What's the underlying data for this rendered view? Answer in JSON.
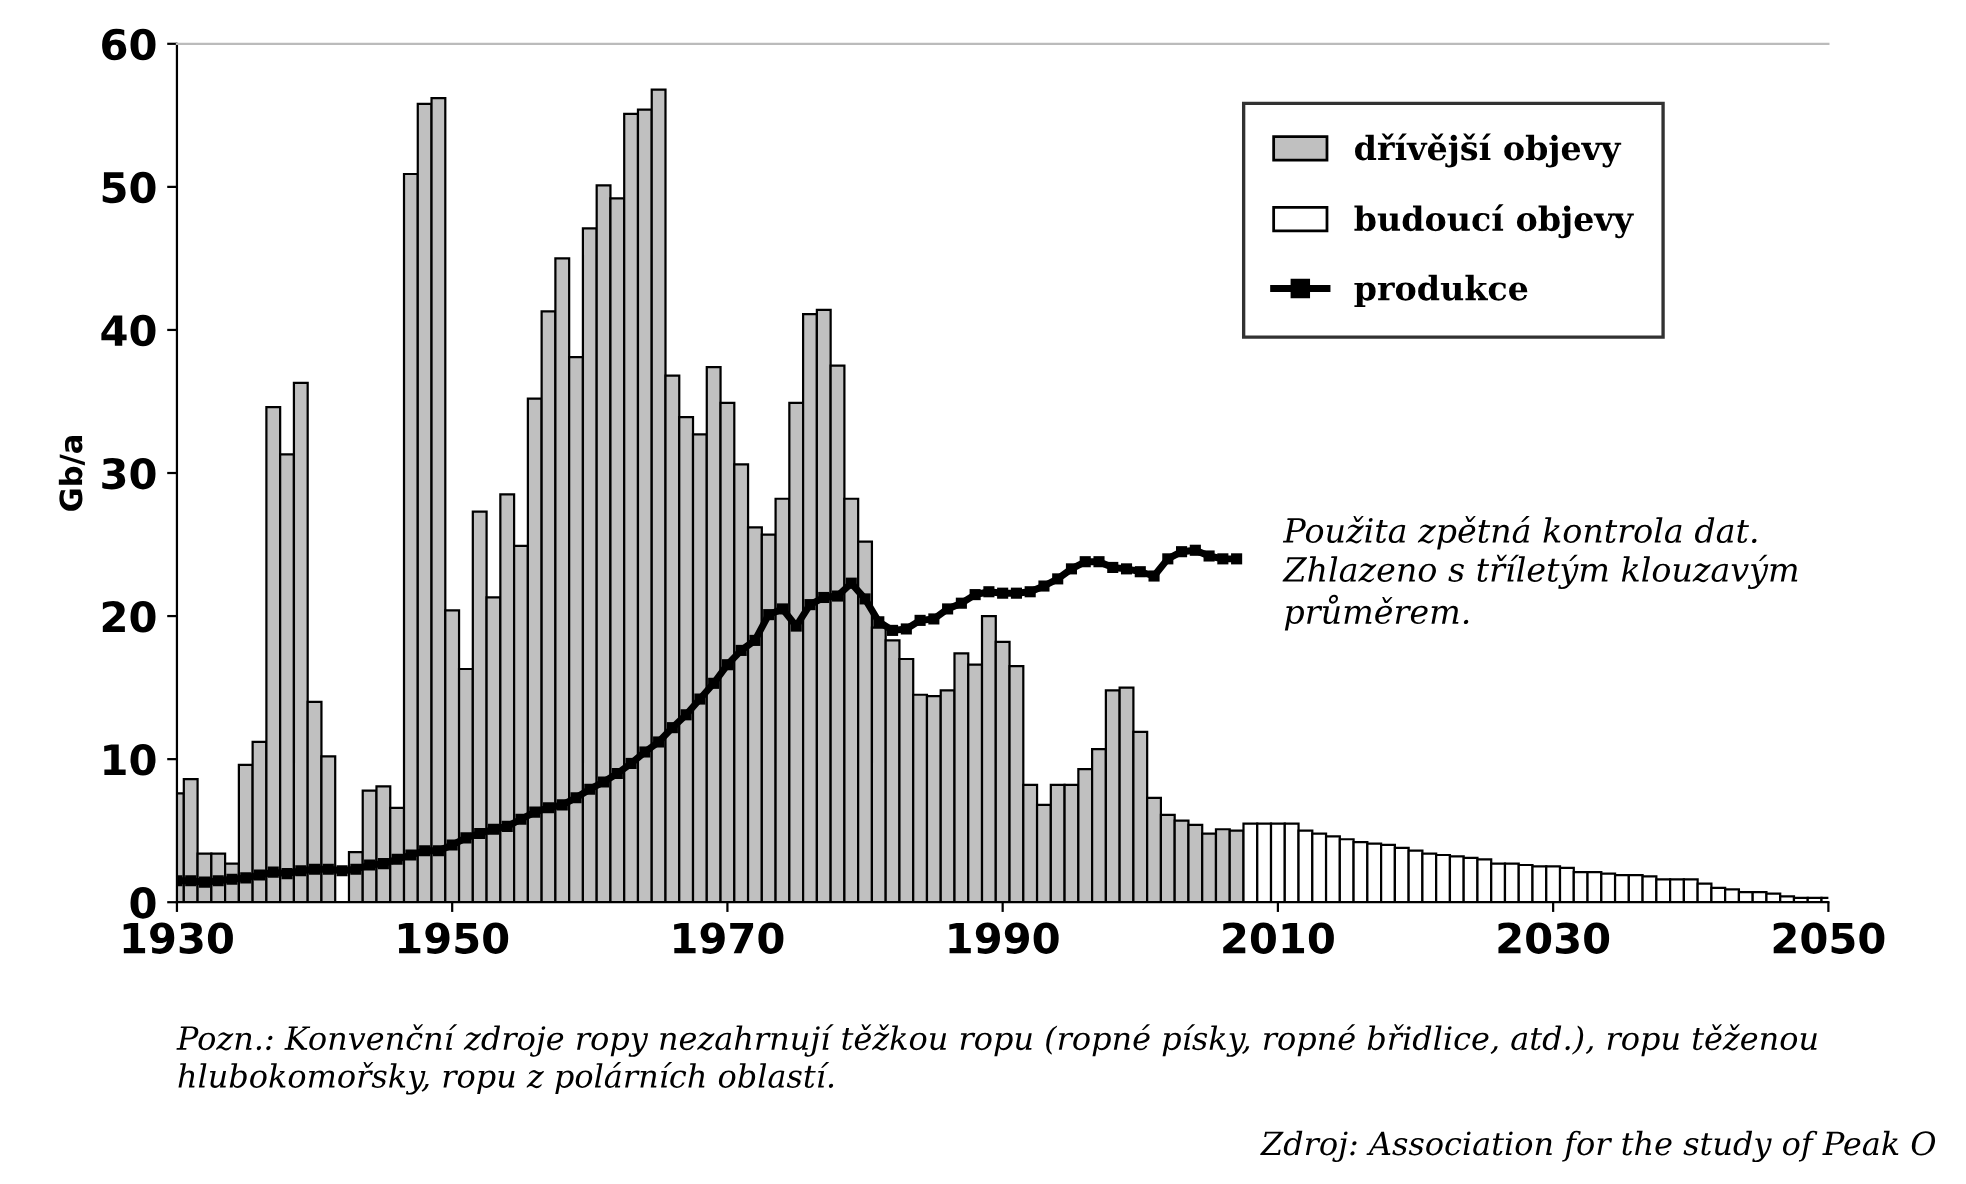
{
  "chart_data": {
    "type": "bar",
    "ylabel": "Gb/a",
    "xlim": [
      1930,
      2050
    ],
    "xticks": [
      1930,
      1950,
      1970,
      1990,
      2010,
      2030,
      2050
    ],
    "ylim": [
      0,
      60
    ],
    "yticks": [
      0,
      10,
      20,
      30,
      40,
      50,
      60
    ],
    "grid": false,
    "legend": "top right",
    "marker": "square",
    "line_style": "solid",
    "series": [
      {
        "name": "dřívější objevy",
        "color": "#c0c0c0",
        "x": [
          1930,
          1931,
          1932,
          1933,
          1934,
          1935,
          1936,
          1937,
          1938,
          1939,
          1940,
          1941,
          1942,
          1943,
          1944,
          1945,
          1946,
          1947,
          1948,
          1949,
          1950,
          1951,
          1952,
          1953,
          1954,
          1955,
          1956,
          1957,
          1958,
          1959,
          1960,
          1961,
          1962,
          1963,
          1964,
          1965,
          1966,
          1967,
          1968,
          1969,
          1970,
          1971,
          1972,
          1973,
          1974,
          1975,
          1976,
          1977,
          1978,
          1979,
          1980,
          1981,
          1982,
          1983,
          1984,
          1985,
          1986,
          1987,
          1988,
          1989,
          1990,
          1991,
          1992,
          1993,
          1994,
          1995,
          1996,
          1997,
          1998,
          1999,
          2000,
          2001,
          2002,
          2003,
          2004,
          2005,
          2006,
          2007
        ],
        "values": [
          7.6,
          8.6,
          3.4,
          3.4,
          2.7,
          9.6,
          11.2,
          34.6,
          31.3,
          36.3,
          14.0,
          10.2,
          null,
          3.5,
          7.8,
          8.1,
          6.6,
          50.9,
          55.8,
          56.2,
          20.4,
          16.3,
          27.3,
          21.3,
          28.5,
          24.9,
          35.2,
          41.3,
          45.0,
          38.1,
          47.1,
          50.1,
          49.2,
          55.1,
          55.4,
          56.8,
          36.8,
          33.9,
          32.7,
          37.4,
          34.9,
          30.6,
          26.2,
          25.7,
          28.2,
          34.9,
          41.1,
          41.4,
          37.5,
          28.2,
          25.2,
          19.2,
          18.3,
          17.0,
          14.5,
          14.4,
          14.8,
          17.4,
          16.6,
          20.0,
          18.2,
          16.5,
          8.2,
          6.8,
          8.2,
          8.2,
          9.3,
          10.7,
          14.8,
          15.0,
          11.9,
          7.3,
          6.1,
          5.7,
          5.4,
          4.8,
          5.1,
          5.0
        ]
      },
      {
        "name": "budoucí objevy",
        "color": "#ffffff",
        "x": [
          2008,
          2009,
          2010,
          2011,
          2012,
          2013,
          2014,
          2015,
          2016,
          2017,
          2018,
          2019,
          2020,
          2021,
          2022,
          2023,
          2024,
          2025,
          2026,
          2027,
          2028,
          2029,
          2030,
          2031,
          2032,
          2033,
          2034,
          2035,
          2036,
          2037,
          2038,
          2039,
          2040,
          2041,
          2042,
          2043,
          2044,
          2045,
          2046,
          2047,
          2048,
          2049,
          2050
        ],
        "values": [
          5.5,
          5.5,
          5.5,
          5.5,
          5.0,
          4.8,
          4.6,
          4.4,
          4.2,
          4.1,
          4.0,
          3.8,
          3.6,
          3.4,
          3.3,
          3.2,
          3.1,
          3.0,
          2.7,
          2.7,
          2.6,
          2.5,
          2.5,
          2.4,
          2.1,
          2.1,
          2.0,
          1.9,
          1.9,
          1.8,
          1.6,
          1.6,
          1.6,
          1.3,
          1.0,
          0.9,
          0.7,
          0.7,
          0.6,
          0.4,
          0.3,
          0.3,
          0.3
        ]
      },
      {
        "name": "produkce",
        "type": "line",
        "color": "#000000",
        "x": [
          1930,
          1931,
          1932,
          1933,
          1934,
          1935,
          1936,
          1937,
          1938,
          1939,
          1940,
          1941,
          1942,
          1943,
          1944,
          1945,
          1946,
          1947,
          1948,
          1949,
          1950,
          1951,
          1952,
          1953,
          1954,
          1955,
          1956,
          1957,
          1958,
          1959,
          1960,
          1961,
          1962,
          1963,
          1964,
          1965,
          1966,
          1967,
          1968,
          1969,
          1970,
          1971,
          1972,
          1973,
          1974,
          1975,
          1976,
          1977,
          1978,
          1979,
          1980,
          1981,
          1982,
          1983,
          1984,
          1985,
          1986,
          1987,
          1988,
          1989,
          1990,
          1991,
          1992,
          1993,
          1994,
          1995,
          1996,
          1997,
          1998,
          1999,
          2000,
          2001,
          2002,
          2003,
          2004,
          2005,
          2006,
          2007
        ],
        "values": [
          1.5,
          1.5,
          1.4,
          1.5,
          1.6,
          1.7,
          1.9,
          2.1,
          2.0,
          2.2,
          2.3,
          2.3,
          2.2,
          2.3,
          2.6,
          2.7,
          3.0,
          3.3,
          3.6,
          3.6,
          4.0,
          4.5,
          4.8,
          5.1,
          5.3,
          5.8,
          6.3,
          6.6,
          6.8,
          7.3,
          7.9,
          8.4,
          9.0,
          9.7,
          10.5,
          11.2,
          12.2,
          13.1,
          14.2,
          15.3,
          16.6,
          17.6,
          18.3,
          20.1,
          20.5,
          19.3,
          20.8,
          21.3,
          21.4,
          22.3,
          21.2,
          19.6,
          19.0,
          19.1,
          19.7,
          19.8,
          20.5,
          20.9,
          21.5,
          21.7,
          21.6,
          21.6,
          21.7,
          22.1,
          22.6,
          23.3,
          23.8,
          23.8,
          23.4,
          23.3,
          23.1,
          22.8,
          24.0,
          24.5,
          24.6,
          24.2,
          24.0,
          24.0
        ]
      }
    ],
    "annotations": [
      "Použita zpětná kontrola dat.\nZhlazeno s tříletým klouzavým\nprůměrem.",
      "Pozn.: Konvenční zdroje ropy nezahrnují těžkou ropu (ropné písky, ropné břidlice, atd.), ropu těženou\nhlubokomořsky, ropu z polárních oblastí.",
      "Zdroj: Association for the study of Peak O"
    ]
  }
}
